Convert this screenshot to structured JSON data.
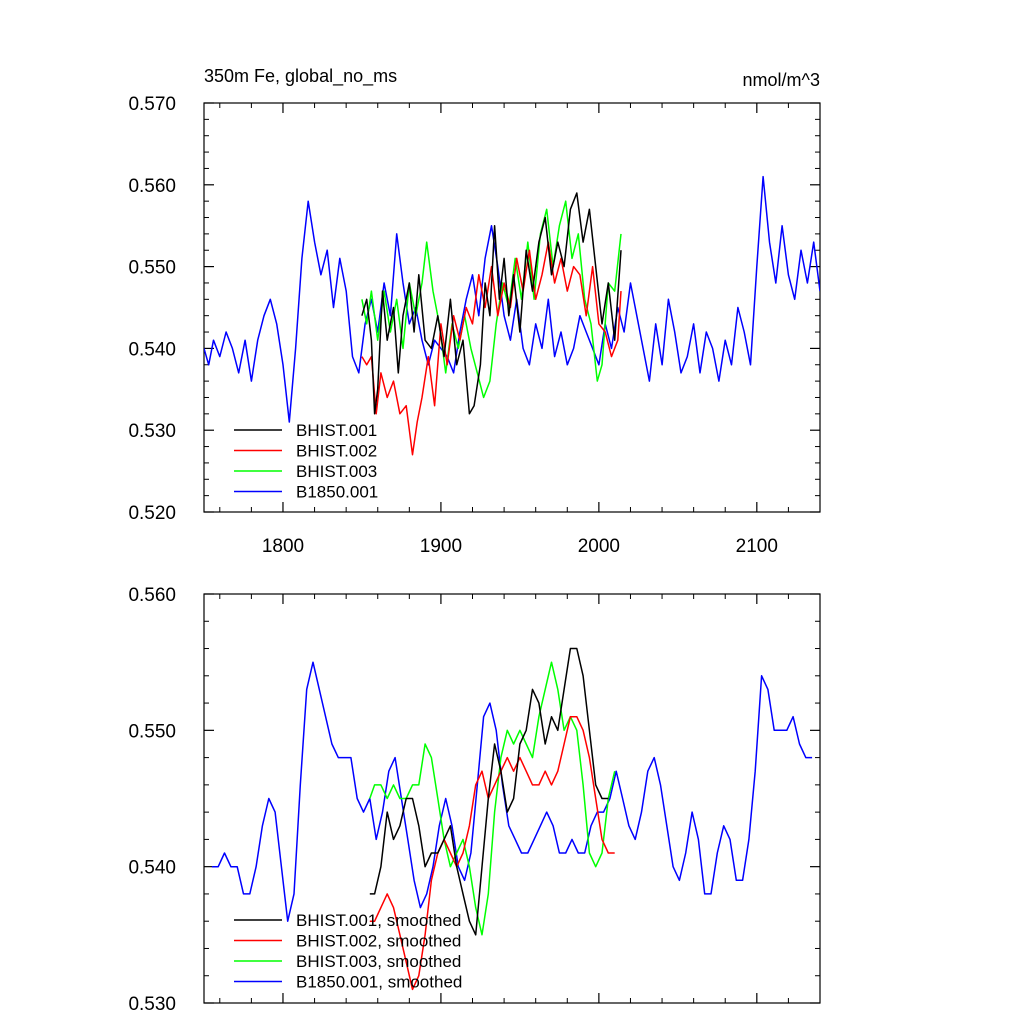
{
  "chart_data": [
    {
      "type": "line",
      "title": "350m Fe, global_no_ms",
      "units": "nmol/m^3",
      "xlim": [
        1750,
        2140
      ],
      "ylim": [
        0.52,
        0.57
      ],
      "x_ticks": [
        1800,
        1900,
        2000,
        2100
      ],
      "x_tick_labels": [
        "1800",
        "1900",
        "2000",
        "2100"
      ],
      "y_ticks": [
        0.52,
        0.53,
        0.54,
        0.55,
        0.56,
        0.57
      ],
      "y_tick_labels": [
        "0.520",
        "0.530",
        "0.540",
        "0.550",
        "0.560",
        "0.570"
      ],
      "legend_position": "bottom-left",
      "series": [
        {
          "name": "BHIST.001",
          "color": "#000000",
          "x": [
            1850,
            1853,
            1856,
            1858,
            1860,
            1863,
            1866,
            1870,
            1873,
            1876,
            1880,
            1883,
            1886,
            1890,
            1894,
            1898,
            1902,
            1906,
            1910,
            1914,
            1918,
            1921,
            1925,
            1928,
            1931,
            1934,
            1937,
            1940,
            1943,
            1946,
            1950,
            1954,
            1958,
            1962,
            1966,
            1970,
            1974,
            1978,
            1982,
            1986,
            1990,
            1994,
            1998,
            2002,
            2006,
            2010,
            2014
          ],
          "y": [
            0.544,
            0.546,
            0.541,
            0.532,
            0.535,
            0.547,
            0.541,
            0.545,
            0.537,
            0.544,
            0.548,
            0.542,
            0.549,
            0.541,
            0.54,
            0.544,
            0.539,
            0.546,
            0.538,
            0.541,
            0.532,
            0.533,
            0.538,
            0.548,
            0.544,
            0.555,
            0.546,
            0.551,
            0.544,
            0.549,
            0.542,
            0.552,
            0.547,
            0.553,
            0.556,
            0.549,
            0.553,
            0.55,
            0.557,
            0.559,
            0.553,
            0.557,
            0.55,
            0.543,
            0.548,
            0.541,
            0.552
          ]
        },
        {
          "name": "BHIST.002",
          "color": "#ff0000",
          "x": [
            1850,
            1853,
            1856,
            1859,
            1862,
            1866,
            1870,
            1874,
            1878,
            1882,
            1885,
            1888,
            1892,
            1896,
            1900,
            1904,
            1908,
            1912,
            1916,
            1920,
            1924,
            1928,
            1932,
            1936,
            1940,
            1944,
            1948,
            1952,
            1956,
            1960,
            1964,
            1968,
            1972,
            1976,
            1980,
            1984,
            1988,
            1992,
            1996,
            2000,
            2004,
            2008,
            2012,
            2014
          ],
          "y": [
            0.539,
            0.538,
            0.539,
            0.532,
            0.537,
            0.534,
            0.536,
            0.532,
            0.533,
            0.527,
            0.531,
            0.534,
            0.539,
            0.533,
            0.543,
            0.538,
            0.544,
            0.541,
            0.545,
            0.543,
            0.549,
            0.545,
            0.55,
            0.544,
            0.548,
            0.545,
            0.551,
            0.547,
            0.552,
            0.546,
            0.549,
            0.553,
            0.548,
            0.551,
            0.547,
            0.55,
            0.549,
            0.544,
            0.55,
            0.543,
            0.542,
            0.539,
            0.541,
            0.547
          ]
        },
        {
          "name": "BHIST.003",
          "color": "#00ff00",
          "x": [
            1850,
            1853,
            1856,
            1860,
            1864,
            1868,
            1872,
            1876,
            1880,
            1884,
            1888,
            1891,
            1895,
            1899,
            1903,
            1907,
            1911,
            1915,
            1919,
            1923,
            1927,
            1931,
            1935,
            1939,
            1943,
            1947,
            1951,
            1955,
            1959,
            1963,
            1967,
            1971,
            1975,
            1979,
            1983,
            1987,
            1991,
            1995,
            1999,
            2002,
            2006,
            2010,
            2014
          ],
          "y": [
            0.546,
            0.543,
            0.547,
            0.541,
            0.547,
            0.542,
            0.546,
            0.54,
            0.548,
            0.544,
            0.548,
            0.553,
            0.547,
            0.543,
            0.537,
            0.543,
            0.54,
            0.544,
            0.54,
            0.537,
            0.534,
            0.536,
            0.543,
            0.548,
            0.545,
            0.551,
            0.546,
            0.553,
            0.546,
            0.554,
            0.557,
            0.55,
            0.555,
            0.558,
            0.551,
            0.554,
            0.546,
            0.543,
            0.536,
            0.538,
            0.548,
            0.547,
            0.554
          ]
        },
        {
          "name": "B1850.001",
          "color": "#0000ff",
          "x": [
            1750,
            1753,
            1756,
            1760,
            1764,
            1768,
            1772,
            1776,
            1780,
            1784,
            1788,
            1792,
            1796,
            1800,
            1804,
            1808,
            1812,
            1816,
            1820,
            1824,
            1828,
            1832,
            1836,
            1840,
            1844,
            1848,
            1852,
            1856,
            1860,
            1864,
            1868,
            1872,
            1876,
            1880,
            1884,
            1888,
            1892,
            1896,
            1900,
            1904,
            1908,
            1912,
            1916,
            1920,
            1924,
            1928,
            1932,
            1936,
            1940,
            1944,
            1948,
            1952,
            1956,
            1960,
            1964,
            1968,
            1972,
            1976,
            1980,
            1984,
            1988,
            1992,
            1996,
            2000,
            2004,
            2008,
            2012,
            2016,
            2020,
            2024,
            2028,
            2032,
            2036,
            2040,
            2044,
            2048,
            2052,
            2056,
            2060,
            2064,
            2068,
            2072,
            2076,
            2080,
            2084,
            2088,
            2092,
            2096,
            2100,
            2104,
            2108,
            2112,
            2116,
            2120,
            2124,
            2128,
            2132,
            2136,
            2140
          ],
          "y": [
            0.54,
            0.538,
            0.541,
            0.539,
            0.542,
            0.54,
            0.537,
            0.541,
            0.536,
            0.541,
            0.544,
            0.546,
            0.543,
            0.538,
            0.531,
            0.54,
            0.551,
            0.558,
            0.553,
            0.549,
            0.552,
            0.545,
            0.551,
            0.547,
            0.539,
            0.537,
            0.543,
            0.546,
            0.542,
            0.548,
            0.544,
            0.554,
            0.548,
            0.543,
            0.545,
            0.541,
            0.538,
            0.541,
            0.54,
            0.539,
            0.537,
            0.542,
            0.546,
            0.549,
            0.544,
            0.551,
            0.555,
            0.55,
            0.544,
            0.541,
            0.546,
            0.54,
            0.538,
            0.543,
            0.54,
            0.546,
            0.539,
            0.542,
            0.538,
            0.54,
            0.544,
            0.542,
            0.54,
            0.538,
            0.543,
            0.54,
            0.545,
            0.542,
            0.548,
            0.544,
            0.54,
            0.536,
            0.543,
            0.538,
            0.546,
            0.542,
            0.537,
            0.539,
            0.543,
            0.537,
            0.542,
            0.54,
            0.536,
            0.541,
            0.538,
            0.545,
            0.542,
            0.538,
            0.55,
            0.561,
            0.553,
            0.548,
            0.555,
            0.549,
            0.546,
            0.552,
            0.548,
            0.553,
            0.547
          ]
        }
      ]
    },
    {
      "type": "line",
      "title": "",
      "xlim": [
        1750,
        2140
      ],
      "ylim": [
        0.53,
        0.56
      ],
      "x_ticks": [
        1800,
        1900,
        2000,
        2100
      ],
      "x_tick_labels": [
        "",
        "",
        "",
        ""
      ],
      "y_ticks": [
        0.53,
        0.54,
        0.55,
        0.56
      ],
      "y_tick_labels": [
        "0.530",
        "0.540",
        "0.550",
        "0.560"
      ],
      "legend_position": "bottom-left",
      "series": [
        {
          "name": "BHIST.001, smoothed",
          "color": "#000000",
          "x": [
            1855,
            1858,
            1862,
            1866,
            1870,
            1874,
            1878,
            1882,
            1886,
            1890,
            1894,
            1898,
            1902,
            1906,
            1910,
            1914,
            1918,
            1922,
            1926,
            1930,
            1934,
            1938,
            1942,
            1946,
            1950,
            1954,
            1958,
            1962,
            1966,
            1970,
            1974,
            1978,
            1982,
            1986,
            1990,
            1994,
            1998,
            2002,
            2006
          ],
          "y": [
            0.538,
            0.538,
            0.54,
            0.544,
            0.542,
            0.543,
            0.545,
            0.545,
            0.543,
            0.54,
            0.541,
            0.541,
            0.542,
            0.543,
            0.54,
            0.538,
            0.536,
            0.535,
            0.54,
            0.545,
            0.549,
            0.547,
            0.544,
            0.545,
            0.549,
            0.55,
            0.553,
            0.552,
            0.549,
            0.551,
            0.55,
            0.553,
            0.556,
            0.556,
            0.554,
            0.55,
            0.546,
            0.545,
            0.545
          ]
        },
        {
          "name": "BHIST.002, smoothed",
          "color": "#ff0000",
          "x": [
            1855,
            1858,
            1862,
            1866,
            1870,
            1874,
            1878,
            1882,
            1886,
            1890,
            1894,
            1898,
            1902,
            1906,
            1910,
            1914,
            1918,
            1922,
            1926,
            1930,
            1934,
            1938,
            1942,
            1946,
            1950,
            1954,
            1958,
            1962,
            1966,
            1970,
            1974,
            1978,
            1982,
            1986,
            1990,
            1994,
            1998,
            2002,
            2006,
            2010
          ],
          "y": [
            0.536,
            0.536,
            0.537,
            0.538,
            0.537,
            0.535,
            0.533,
            0.531,
            0.532,
            0.535,
            0.539,
            0.541,
            0.542,
            0.541,
            0.54,
            0.541,
            0.543,
            0.546,
            0.547,
            0.545,
            0.546,
            0.547,
            0.548,
            0.547,
            0.548,
            0.547,
            0.546,
            0.546,
            0.547,
            0.546,
            0.547,
            0.549,
            0.551,
            0.551,
            0.55,
            0.548,
            0.545,
            0.542,
            0.541,
            0.541
          ]
        },
        {
          "name": "BHIST.003, smoothed",
          "color": "#00ff00",
          "x": [
            1855,
            1858,
            1862,
            1866,
            1870,
            1874,
            1878,
            1882,
            1886,
            1890,
            1894,
            1898,
            1902,
            1906,
            1910,
            1914,
            1918,
            1922,
            1926,
            1930,
            1934,
            1938,
            1942,
            1946,
            1950,
            1954,
            1958,
            1962,
            1966,
            1970,
            1974,
            1978,
            1982,
            1986,
            1990,
            1994,
            1998,
            2002,
            2006,
            2010
          ],
          "y": [
            0.545,
            0.546,
            0.546,
            0.545,
            0.546,
            0.545,
            0.545,
            0.546,
            0.546,
            0.549,
            0.548,
            0.545,
            0.542,
            0.54,
            0.541,
            0.542,
            0.54,
            0.537,
            0.535,
            0.538,
            0.544,
            0.548,
            0.55,
            0.549,
            0.55,
            0.549,
            0.548,
            0.551,
            0.553,
            0.555,
            0.553,
            0.55,
            0.551,
            0.55,
            0.546,
            0.541,
            0.54,
            0.541,
            0.545,
            0.547
          ]
        },
        {
          "name": "B1850.001, smoothed",
          "color": "#0000ff",
          "x": [
            1755,
            1759,
            1763,
            1767,
            1771,
            1775,
            1779,
            1783,
            1787,
            1791,
            1795,
            1799,
            1803,
            1807,
            1811,
            1815,
            1819,
            1823,
            1827,
            1831,
            1835,
            1839,
            1843,
            1847,
            1851,
            1855,
            1859,
            1863,
            1867,
            1871,
            1875,
            1879,
            1883,
            1887,
            1891,
            1895,
            1899,
            1903,
            1907,
            1911,
            1915,
            1919,
            1923,
            1927,
            1931,
            1935,
            1939,
            1943,
            1947,
            1951,
            1955,
            1959,
            1963,
            1967,
            1971,
            1975,
            1979,
            1983,
            1987,
            1991,
            1995,
            1999,
            2003,
            2007,
            2011,
            2015,
            2019,
            2023,
            2027,
            2031,
            2035,
            2039,
            2043,
            2047,
            2051,
            2055,
            2059,
            2063,
            2067,
            2071,
            2075,
            2079,
            2083,
            2087,
            2091,
            2095,
            2099,
            2103,
            2107,
            2111,
            2115,
            2119,
            2123,
            2127,
            2131,
            2135
          ],
          "y": [
            0.54,
            0.54,
            0.541,
            0.54,
            0.54,
            0.538,
            0.538,
            0.54,
            0.543,
            0.545,
            0.544,
            0.54,
            0.536,
            0.538,
            0.546,
            0.553,
            0.555,
            0.553,
            0.551,
            0.549,
            0.548,
            0.548,
            0.548,
            0.545,
            0.544,
            0.545,
            0.542,
            0.544,
            0.547,
            0.548,
            0.545,
            0.542,
            0.539,
            0.537,
            0.538,
            0.54,
            0.543,
            0.545,
            0.543,
            0.54,
            0.539,
            0.541,
            0.546,
            0.551,
            0.552,
            0.55,
            0.546,
            0.543,
            0.542,
            0.541,
            0.541,
            0.542,
            0.543,
            0.544,
            0.543,
            0.541,
            0.541,
            0.542,
            0.541,
            0.541,
            0.543,
            0.544,
            0.544,
            0.545,
            0.547,
            0.545,
            0.543,
            0.542,
            0.544,
            0.547,
            0.548,
            0.546,
            0.543,
            0.54,
            0.539,
            0.541,
            0.544,
            0.542,
            0.538,
            0.538,
            0.541,
            0.543,
            0.542,
            0.539,
            0.539,
            0.542,
            0.547,
            0.554,
            0.553,
            0.55,
            0.55,
            0.55,
            0.551,
            0.549,
            0.548,
            0.548
          ]
        }
      ]
    }
  ]
}
